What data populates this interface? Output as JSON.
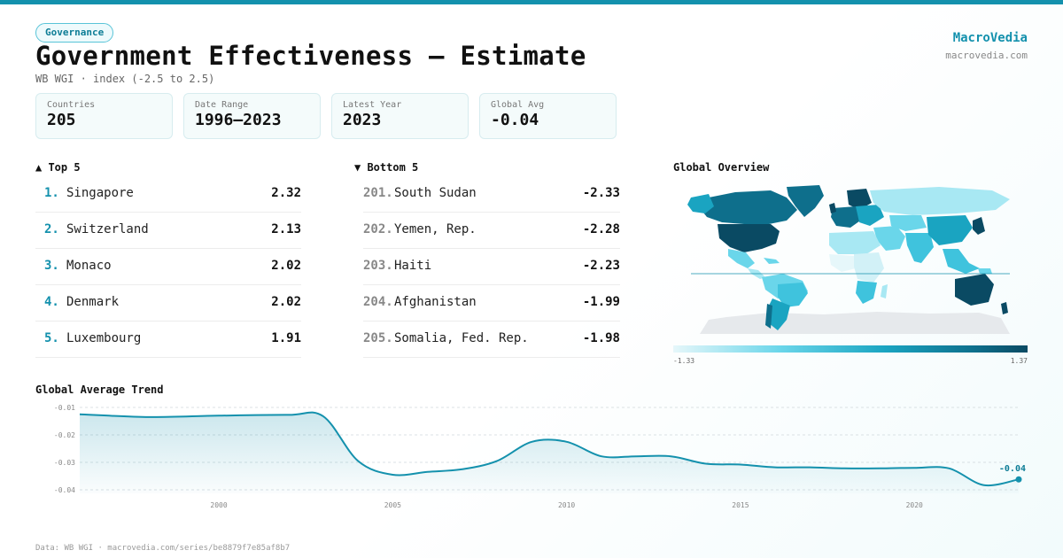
{
  "header": {
    "tag": "Governance",
    "title": "Government Effectiveness — Estimate",
    "subtitle": "WB WGI · index (-2.5 to 2.5)",
    "brand": "MacroVedia",
    "brand_url": "macrovedia.com"
  },
  "stats": [
    {
      "label": "Countries",
      "value": "205"
    },
    {
      "label": "Date Range",
      "value": "1996–2023"
    },
    {
      "label": "Latest Year",
      "value": "2023"
    },
    {
      "label": "Global Avg",
      "value": "-0.04"
    }
  ],
  "top5": {
    "heading": "▲ Top 5",
    "items": [
      {
        "rank": "1.",
        "name": "Singapore",
        "value": "2.32"
      },
      {
        "rank": "2.",
        "name": "Switzerland",
        "value": "2.13"
      },
      {
        "rank": "3.",
        "name": "Monaco",
        "value": "2.02"
      },
      {
        "rank": "4.",
        "name": "Denmark",
        "value": "2.02"
      },
      {
        "rank": "5.",
        "name": "Luxembourg",
        "value": "1.91"
      }
    ]
  },
  "bottom5": {
    "heading": "▼ Bottom 5",
    "items": [
      {
        "rank": "201.",
        "name": "South Sudan",
        "value": "-2.33"
      },
      {
        "rank": "202.",
        "name": "Yemen, Rep.",
        "value": "-2.28"
      },
      {
        "rank": "203.",
        "name": "Haiti",
        "value": "-2.23"
      },
      {
        "rank": "204.",
        "name": "Afghanistan",
        "value": "-1.99"
      },
      {
        "rank": "205.",
        "name": "Somalia, Fed. Rep.",
        "value": "-1.98"
      }
    ]
  },
  "map": {
    "heading": "Global Overview",
    "legend_min": "-1.33",
    "legend_max": "1.37",
    "colors": [
      "#e6f7fa",
      "#6ad6ea",
      "#1aa4c1",
      "#0e6f8c",
      "#0a4a63"
    ]
  },
  "footer": "Data: WB WGI · macrovedia.com/series/be8879f7e85af8b7",
  "chart_data": {
    "type": "area",
    "title": "Global Average Trend",
    "x": [
      1996,
      1998,
      2000,
      2002,
      2003,
      2004,
      2005,
      2006,
      2007,
      2008,
      2009,
      2010,
      2011,
      2012,
      2013,
      2014,
      2015,
      2016,
      2017,
      2018,
      2019,
      2020,
      2021,
      2022,
      2023
    ],
    "y": [
      -0.0125,
      -0.0135,
      -0.013,
      -0.0127,
      -0.0132,
      -0.0295,
      -0.0345,
      -0.0335,
      -0.0325,
      -0.0295,
      -0.0225,
      -0.0225,
      -0.0278,
      -0.0278,
      -0.0278,
      -0.0305,
      -0.0308,
      -0.0318,
      -0.0318,
      -0.0322,
      -0.0322,
      -0.032,
      -0.0322,
      -0.0383,
      -0.0362
    ],
    "xticks": [
      2000,
      2005,
      2010,
      2015,
      2020
    ],
    "yticks": [
      "-0.01",
      "-0.02",
      "-0.03",
      "-0.04"
    ],
    "ylim": [
      -0.04,
      -0.01
    ],
    "xlim": [
      1996,
      2023
    ],
    "last_label": "-0.04",
    "grid": true,
    "color": "#1491ad"
  }
}
